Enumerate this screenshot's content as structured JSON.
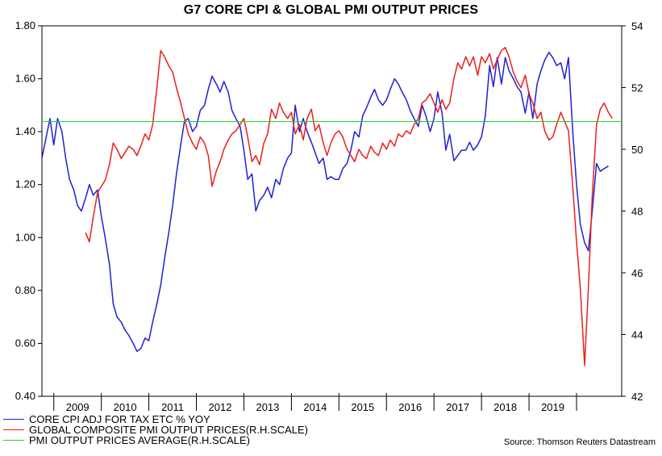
{
  "chart_data": {
    "type": "line",
    "title": "G7 CORE CPI & GLOBAL PMI OUTPUT PRICES",
    "source": "Source: Thomson Reuters Datastream",
    "x_range": [
      2008.75,
      2020.95
    ],
    "x_tick_labels": [
      "2009",
      "2010",
      "2011",
      "2012",
      "2013",
      "2014",
      "2015",
      "2016",
      "2017",
      "2018",
      "2019"
    ],
    "left_axis": {
      "ylim": [
        0.4,
        1.8
      ],
      "ticks": [
        "0.40",
        "0.60",
        "0.80",
        "1.00",
        "1.20",
        "1.40",
        "1.60",
        "1.80"
      ]
    },
    "right_axis": {
      "ylim": [
        42,
        54
      ],
      "ticks": [
        "42",
        "44",
        "46",
        "48",
        "50",
        "52",
        "54"
      ]
    },
    "grid": false,
    "legend_position": "bottom-left",
    "series": [
      {
        "name": "CORE CPI ADJ FOR TAX ETC % YOY",
        "axis": "left",
        "color": "#1f1fd6",
        "points": [
          [
            2008.75,
            1.3
          ],
          [
            2008.92,
            1.45
          ],
          [
            2009.0,
            1.35
          ],
          [
            2009.08,
            1.45
          ],
          [
            2009.17,
            1.4
          ],
          [
            2009.25,
            1.3
          ],
          [
            2009.33,
            1.22
          ],
          [
            2009.42,
            1.18
          ],
          [
            2009.5,
            1.12
          ],
          [
            2009.58,
            1.1
          ],
          [
            2009.67,
            1.15
          ],
          [
            2009.75,
            1.2
          ],
          [
            2009.83,
            1.16
          ],
          [
            2009.92,
            1.18
          ],
          [
            2010.0,
            1.08
          ],
          [
            2010.08,
            1.0
          ],
          [
            2010.17,
            0.9
          ],
          [
            2010.25,
            0.75
          ],
          [
            2010.33,
            0.7
          ],
          [
            2010.42,
            0.68
          ],
          [
            2010.5,
            0.65
          ],
          [
            2010.58,
            0.63
          ],
          [
            2010.67,
            0.6
          ],
          [
            2010.75,
            0.57
          ],
          [
            2010.83,
            0.58
          ],
          [
            2010.92,
            0.62
          ],
          [
            2011.0,
            0.61
          ],
          [
            2011.08,
            0.68
          ],
          [
            2011.17,
            0.75
          ],
          [
            2011.25,
            0.82
          ],
          [
            2011.33,
            0.92
          ],
          [
            2011.42,
            1.02
          ],
          [
            2011.5,
            1.12
          ],
          [
            2011.58,
            1.24
          ],
          [
            2011.67,
            1.35
          ],
          [
            2011.75,
            1.44
          ],
          [
            2011.83,
            1.45
          ],
          [
            2011.92,
            1.4
          ],
          [
            2012.0,
            1.42
          ],
          [
            2012.08,
            1.48
          ],
          [
            2012.17,
            1.5
          ],
          [
            2012.25,
            1.56
          ],
          [
            2012.33,
            1.61
          ],
          [
            2012.42,
            1.58
          ],
          [
            2012.5,
            1.55
          ],
          [
            2012.58,
            1.59
          ],
          [
            2012.67,
            1.55
          ],
          [
            2012.75,
            1.48
          ],
          [
            2012.83,
            1.45
          ],
          [
            2012.92,
            1.42
          ],
          [
            2013.0,
            1.33
          ],
          [
            2013.08,
            1.22
          ],
          [
            2013.17,
            1.24
          ],
          [
            2013.25,
            1.1
          ],
          [
            2013.33,
            1.14
          ],
          [
            2013.42,
            1.16
          ],
          [
            2013.5,
            1.19
          ],
          [
            2013.58,
            1.15
          ],
          [
            2013.67,
            1.22
          ],
          [
            2013.75,
            1.2
          ],
          [
            2013.83,
            1.26
          ],
          [
            2013.92,
            1.3
          ],
          [
            2014.0,
            1.32
          ],
          [
            2014.08,
            1.5
          ],
          [
            2014.17,
            1.4
          ],
          [
            2014.25,
            1.45
          ],
          [
            2014.33,
            1.4
          ],
          [
            2014.42,
            1.36
          ],
          [
            2014.5,
            1.32
          ],
          [
            2014.58,
            1.28
          ],
          [
            2014.67,
            1.3
          ],
          [
            2014.75,
            1.22
          ],
          [
            2014.83,
            1.23
          ],
          [
            2014.92,
            1.22
          ],
          [
            2015.0,
            1.22
          ],
          [
            2015.08,
            1.26
          ],
          [
            2015.17,
            1.28
          ],
          [
            2015.25,
            1.33
          ],
          [
            2015.33,
            1.4
          ],
          [
            2015.42,
            1.38
          ],
          [
            2015.5,
            1.46
          ],
          [
            2015.58,
            1.49
          ],
          [
            2015.67,
            1.53
          ],
          [
            2015.75,
            1.56
          ],
          [
            2015.83,
            1.52
          ],
          [
            2015.92,
            1.5
          ],
          [
            2016.0,
            1.52
          ],
          [
            2016.08,
            1.56
          ],
          [
            2016.17,
            1.6
          ],
          [
            2016.25,
            1.58
          ],
          [
            2016.33,
            1.55
          ],
          [
            2016.42,
            1.52
          ],
          [
            2016.5,
            1.48
          ],
          [
            2016.58,
            1.45
          ],
          [
            2016.67,
            1.42
          ],
          [
            2016.75,
            1.5
          ],
          [
            2016.83,
            1.46
          ],
          [
            2016.92,
            1.4
          ],
          [
            2017.0,
            1.45
          ],
          [
            2017.08,
            1.55
          ],
          [
            2017.17,
            1.47
          ],
          [
            2017.25,
            1.33
          ],
          [
            2017.33,
            1.39
          ],
          [
            2017.42,
            1.29
          ],
          [
            2017.5,
            1.31
          ],
          [
            2017.58,
            1.33
          ],
          [
            2017.67,
            1.33
          ],
          [
            2017.75,
            1.36
          ],
          [
            2017.83,
            1.33
          ],
          [
            2017.92,
            1.35
          ],
          [
            2018.0,
            1.38
          ],
          [
            2018.08,
            1.46
          ],
          [
            2018.17,
            1.65
          ],
          [
            2018.25,
            1.57
          ],
          [
            2018.33,
            1.68
          ],
          [
            2018.42,
            1.58
          ],
          [
            2018.5,
            1.68
          ],
          [
            2018.58,
            1.63
          ],
          [
            2018.67,
            1.6
          ],
          [
            2018.75,
            1.57
          ],
          [
            2018.83,
            1.55
          ],
          [
            2018.92,
            1.47
          ],
          [
            2019.0,
            1.55
          ],
          [
            2019.08,
            1.45
          ],
          [
            2019.17,
            1.58
          ],
          [
            2019.25,
            1.63
          ],
          [
            2019.33,
            1.67
          ],
          [
            2019.42,
            1.7
          ],
          [
            2019.5,
            1.68
          ],
          [
            2019.58,
            1.65
          ],
          [
            2019.67,
            1.66
          ],
          [
            2019.75,
            1.6
          ],
          [
            2019.83,
            1.68
          ],
          [
            2019.92,
            1.4
          ],
          [
            2020.0,
            1.2
          ],
          [
            2020.08,
            1.05
          ],
          [
            2020.17,
            0.98
          ],
          [
            2020.25,
            0.95
          ],
          [
            2020.33,
            1.1
          ],
          [
            2020.42,
            1.28
          ],
          [
            2020.5,
            1.25
          ],
          [
            2020.58,
            1.26
          ],
          [
            2020.67,
            1.27
          ]
        ]
      },
      {
        "name": "GLOBAL COMPOSITE PMI OUTPUT PRICES(R.H.SCALE)",
        "axis": "right",
        "color": "#e8201c",
        "points": [
          [
            2009.67,
            47.3
          ],
          [
            2009.75,
            47.0
          ],
          [
            2009.83,
            47.8
          ],
          [
            2009.92,
            48.6
          ],
          [
            2010.0,
            48.8
          ],
          [
            2010.08,
            49.0
          ],
          [
            2010.17,
            49.5
          ],
          [
            2010.25,
            50.2
          ],
          [
            2010.33,
            50.0
          ],
          [
            2010.42,
            49.7
          ],
          [
            2010.5,
            49.9
          ],
          [
            2010.58,
            50.1
          ],
          [
            2010.67,
            50.0
          ],
          [
            2010.75,
            49.8
          ],
          [
            2010.83,
            50.1
          ],
          [
            2010.92,
            50.5
          ],
          [
            2011.0,
            50.3
          ],
          [
            2011.08,
            50.8
          ],
          [
            2011.17,
            52.0
          ],
          [
            2011.25,
            53.2
          ],
          [
            2011.33,
            53.0
          ],
          [
            2011.42,
            52.7
          ],
          [
            2011.5,
            52.5
          ],
          [
            2011.58,
            52.0
          ],
          [
            2011.67,
            51.5
          ],
          [
            2011.75,
            51.0
          ],
          [
            2011.83,
            50.5
          ],
          [
            2011.92,
            50.2
          ],
          [
            2012.0,
            50.0
          ],
          [
            2012.08,
            50.4
          ],
          [
            2012.17,
            50.2
          ],
          [
            2012.25,
            49.8
          ],
          [
            2012.33,
            48.8
          ],
          [
            2012.42,
            49.3
          ],
          [
            2012.5,
            49.6
          ],
          [
            2012.58,
            50.0
          ],
          [
            2012.67,
            50.3
          ],
          [
            2012.75,
            50.5
          ],
          [
            2012.83,
            50.6
          ],
          [
            2012.92,
            50.8
          ],
          [
            2013.0,
            51.0
          ],
          [
            2013.08,
            50.4
          ],
          [
            2013.17,
            49.6
          ],
          [
            2013.25,
            49.8
          ],
          [
            2013.33,
            49.5
          ],
          [
            2013.42,
            50.2
          ],
          [
            2013.5,
            50.5
          ],
          [
            2013.58,
            51.3
          ],
          [
            2013.67,
            51.0
          ],
          [
            2013.75,
            51.5
          ],
          [
            2013.83,
            51.2
          ],
          [
            2013.92,
            51.0
          ],
          [
            2014.0,
            51.2
          ],
          [
            2014.08,
            50.5
          ],
          [
            2014.17,
            50.8
          ],
          [
            2014.25,
            50.3
          ],
          [
            2014.33,
            51.0
          ],
          [
            2014.42,
            51.3
          ],
          [
            2014.5,
            50.6
          ],
          [
            2014.58,
            50.8
          ],
          [
            2014.67,
            50.2
          ],
          [
            2014.75,
            49.8
          ],
          [
            2014.83,
            50.2
          ],
          [
            2014.92,
            50.5
          ],
          [
            2015.0,
            50.6
          ],
          [
            2015.08,
            50.4
          ],
          [
            2015.17,
            50.0
          ],
          [
            2015.25,
            49.8
          ],
          [
            2015.33,
            49.6
          ],
          [
            2015.42,
            50.0
          ],
          [
            2015.5,
            49.8
          ],
          [
            2015.58,
            49.7
          ],
          [
            2015.67,
            50.1
          ],
          [
            2015.75,
            49.9
          ],
          [
            2015.83,
            49.8
          ],
          [
            2015.92,
            50.2
          ],
          [
            2016.0,
            50.0
          ],
          [
            2016.08,
            50.3
          ],
          [
            2016.17,
            50.1
          ],
          [
            2016.25,
            50.5
          ],
          [
            2016.33,
            50.4
          ],
          [
            2016.42,
            50.6
          ],
          [
            2016.5,
            50.5
          ],
          [
            2016.58,
            50.8
          ],
          [
            2016.67,
            51.0
          ],
          [
            2016.75,
            51.5
          ],
          [
            2016.83,
            51.6
          ],
          [
            2016.92,
            51.8
          ],
          [
            2017.0,
            51.5
          ],
          [
            2017.08,
            51.2
          ],
          [
            2017.17,
            51.6
          ],
          [
            2017.25,
            51.3
          ],
          [
            2017.33,
            51.5
          ],
          [
            2017.42,
            52.3
          ],
          [
            2017.5,
            52.8
          ],
          [
            2017.58,
            52.6
          ],
          [
            2017.67,
            53.0
          ],
          [
            2017.75,
            52.7
          ],
          [
            2017.83,
            53.0
          ],
          [
            2017.92,
            52.4
          ],
          [
            2018.0,
            53.0
          ],
          [
            2018.08,
            52.8
          ],
          [
            2018.17,
            53.1
          ],
          [
            2018.25,
            52.6
          ],
          [
            2018.33,
            52.9
          ],
          [
            2018.42,
            53.2
          ],
          [
            2018.5,
            53.3
          ],
          [
            2018.58,
            53.0
          ],
          [
            2018.67,
            52.5
          ],
          [
            2018.75,
            52.2
          ],
          [
            2018.83,
            52.0
          ],
          [
            2018.92,
            52.4
          ],
          [
            2019.0,
            51.8
          ],
          [
            2019.08,
            51.5
          ],
          [
            2019.17,
            51.0
          ],
          [
            2019.25,
            51.2
          ],
          [
            2019.33,
            50.6
          ],
          [
            2019.42,
            50.3
          ],
          [
            2019.5,
            50.4
          ],
          [
            2019.58,
            50.8
          ],
          [
            2019.67,
            51.2
          ],
          [
            2019.75,
            50.9
          ],
          [
            2019.83,
            50.6
          ],
          [
            2019.92,
            48.8
          ],
          [
            2020.0,
            47.0
          ],
          [
            2020.08,
            45.5
          ],
          [
            2020.17,
            43.0
          ],
          [
            2020.25,
            45.5
          ],
          [
            2020.33,
            48.5
          ],
          [
            2020.42,
            50.8
          ],
          [
            2020.5,
            51.3
          ],
          [
            2020.58,
            51.5
          ],
          [
            2020.67,
            51.2
          ],
          [
            2020.75,
            51.0
          ]
        ]
      },
      {
        "name": "PMI OUTPUT PRICES AVERAGE(R.H.SCALE)",
        "axis": "right",
        "color": "#2fd12f",
        "value": 50.9
      }
    ]
  },
  "legend": [
    {
      "label": "CORE CPI ADJ FOR TAX ETC % YOY",
      "color": "#1f1fd6"
    },
    {
      "label": "GLOBAL COMPOSITE PMI OUTPUT PRICES(R.H.SCALE)",
      "color": "#e8201c"
    },
    {
      "label": "PMI OUTPUT PRICES AVERAGE(R.H.SCALE)",
      "color": "#2fd12f"
    }
  ]
}
